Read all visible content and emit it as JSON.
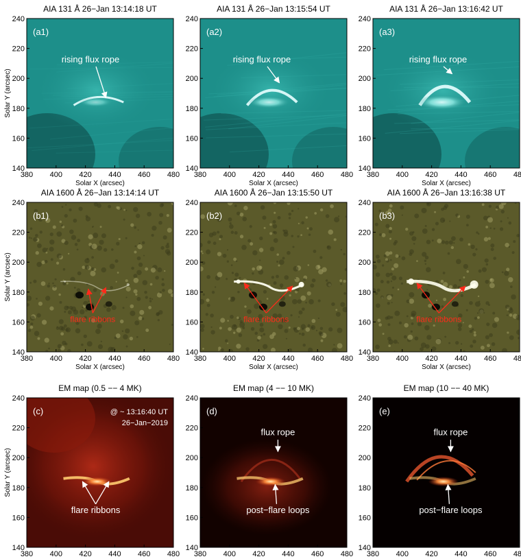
{
  "figure": {
    "x_axis_label": "Solar X (arcsec)",
    "y_axis_label": "Solar Y (arcsec)",
    "x_ticks": [
      "380",
      "400",
      "420",
      "440",
      "460",
      "480"
    ],
    "y_ticks": [
      "140",
      "160",
      "180",
      "200",
      "220",
      "240"
    ],
    "rows": [
      {
        "row_id": "a",
        "colormap": "teal",
        "panels": [
          {
            "title": "AIA 131 Å   26−Jan 13:14:18 UT",
            "label": "(a1)",
            "brightness": 0.55,
            "annotations": [
              {
                "text": "rising flux rope"
              }
            ]
          },
          {
            "title": "AIA 131 Å   26−Jan 13:15:54 UT",
            "label": "(a2)",
            "brightness": 0.8,
            "annotations": [
              {
                "text": "rising flux rope"
              }
            ]
          },
          {
            "title": "AIA 131 Å   26−Jan 13:16:42 UT",
            "label": "(a3)",
            "brightness": 0.9,
            "annotations": [
              {
                "text": "rising flux rope"
              }
            ]
          }
        ]
      },
      {
        "row_id": "b",
        "colormap": "olive",
        "panels": [
          {
            "title": "AIA 1600 Å   26−Jan 13:14:14 UT",
            "label": "(b1)",
            "brightness": 0.45,
            "annotations": [
              {
                "text": "flare ribbons"
              }
            ]
          },
          {
            "title": "AIA 1600 Å   26−Jan 13:15:50 UT",
            "label": "(b2)",
            "brightness": 0.95,
            "annotations": [
              {
                "text": "flare ribbons"
              }
            ]
          },
          {
            "title": "AIA 1600 Å   26−Jan 13:16:38 UT",
            "label": "(b3)",
            "brightness": 0.9,
            "annotations": [
              {
                "text": "flare ribbons"
              }
            ]
          }
        ]
      },
      {
        "row_id": "c",
        "colormap": "red",
        "panels": [
          {
            "title": "EM map   (0.5 −− 4 MK)",
            "label": "(c)",
            "brightness": 0.7,
            "extra_text": [
              "@ ~ 13:16:40 UT",
              "26−Jan−2019"
            ],
            "annotations": [
              {
                "text": "flare ribbons"
              }
            ]
          },
          {
            "title": "EM map   (4 −− 10 MK)",
            "label": "(d)",
            "brightness": 0.55,
            "annotations": [
              {
                "text": "flux rope"
              },
              {
                "text": "post−flare loops"
              }
            ]
          },
          {
            "title": "EM map   (10 −− 40 MK)",
            "label": "(e)",
            "brightness": 0.35,
            "annotations": [
              {
                "text": "flux rope"
              },
              {
                "text": "post−flare loops"
              }
            ]
          }
        ]
      }
    ]
  },
  "colors": {
    "teal_bg": "#1d8f8a",
    "teal_dark": "#0d4a48",
    "teal_bright": "#e8ffff",
    "olive_bg": "#5b5a2a",
    "olive_dark": "#2a2a14",
    "olive_bright": "#fffff0",
    "red_bg": "#4a0c06",
    "red_mid": "#a4220f",
    "red_bright": "#ffe8b0",
    "annotation_white": "#ffffff",
    "annotation_red": "#ff2a1a"
  }
}
